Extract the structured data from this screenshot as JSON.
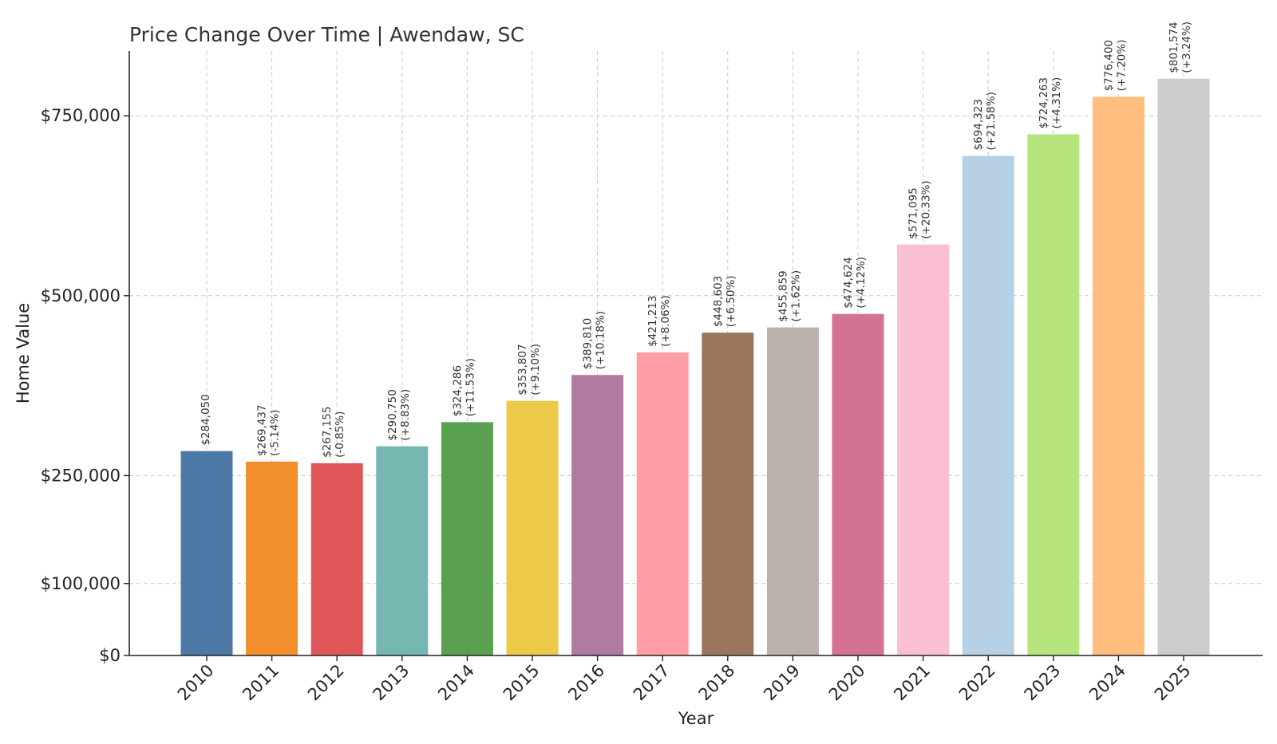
{
  "chart_data": {
    "type": "bar",
    "title": "Price Change Over Time | Awendaw, SC",
    "xlabel": "Year",
    "ylabel": "Home Value",
    "categories": [
      "2010",
      "2011",
      "2012",
      "2013",
      "2014",
      "2015",
      "2016",
      "2017",
      "2018",
      "2019",
      "2020",
      "2021",
      "2022",
      "2023",
      "2024",
      "2025"
    ],
    "values": [
      284050,
      269437,
      267155,
      290750,
      324286,
      353807,
      389810,
      421213,
      448603,
      455859,
      474624,
      571095,
      694323,
      724263,
      776400,
      801574
    ],
    "value_labels": [
      "$284,050",
      "$269,437",
      "$267,155",
      "$290,750",
      "$324,286",
      "$353,807",
      "$389,810",
      "$421,213",
      "$448,603",
      "$455,859",
      "$474,624",
      "$571,095",
      "$694,323",
      "$724,263",
      "$776,400",
      "$801,574"
    ],
    "change_labels": [
      "",
      "(-5.14%)",
      "(-0.85%)",
      "(+8.83%)",
      "(+11.53%)",
      "(+9.10%)",
      "(+10.18%)",
      "(+8.06%)",
      "(+6.50%)",
      "(+1.62%)",
      "(+4.12%)",
      "(+20.33%)",
      "(+21.58%)",
      "(+4.31%)",
      "(+7.20%)",
      "(+3.24%)"
    ],
    "colors": [
      "#4e79a7",
      "#f28e2b",
      "#e15759",
      "#76b7b2",
      "#59a14f",
      "#edc948",
      "#b07aa1",
      "#ff9da7",
      "#9c755f",
      "#bab0ac",
      "#d37295",
      "#fabfd2",
      "#b6d0e6",
      "#b5e57c",
      "#ffbe7d",
      "#cccccc"
    ],
    "yticks": [
      0,
      100000,
      250000,
      500000,
      750000
    ],
    "ytick_labels": [
      "$0",
      "$100,000",
      "$250,000",
      "$500,000",
      "$750,000"
    ],
    "ylim": [
      0,
      840000
    ],
    "grid": true
  }
}
